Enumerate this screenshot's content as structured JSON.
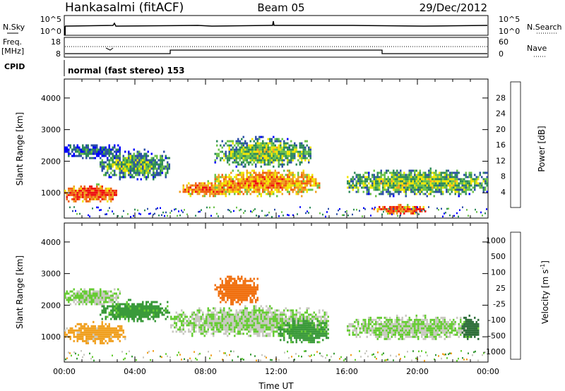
{
  "header": {
    "station": "Hankasalmi (fitACF)",
    "beam": "Beam 05",
    "date": "29/Dec/2012"
  },
  "noise_panel": {
    "left_label": "N.Sky",
    "right_label": "N.Search",
    "left_ticks": [
      "10^5",
      "10^0"
    ],
    "right_ticks": [
      "10^5",
      "10^0"
    ]
  },
  "freq_panel": {
    "left_label_line1": "Freq.",
    "left_label_line2": "[MHz]",
    "left_ticks": [
      "18",
      "8"
    ],
    "right_ticks": [
      "60",
      "0"
    ],
    "right_label": "Nave",
    "cpid_label": "CPID",
    "cpid_text": "normal (fast stereo) 153"
  },
  "chart_data": [
    {
      "type": "heatmap",
      "name": "power",
      "ylabel": "Slant Range [km]",
      "xlabel": "Time UT",
      "x_ticks": [
        "00:00",
        "04:00",
        "08:00",
        "12:00",
        "16:00",
        "20:00",
        "00:00"
      ],
      "y_ticks": [
        1000,
        2000,
        3000,
        4000
      ],
      "ylim": [
        200,
        4600
      ],
      "xlim_hours": [
        0,
        24
      ],
      "colorbar": {
        "label": "Power [dB]",
        "ticks": [
          4,
          8,
          12,
          16,
          20,
          24,
          28
        ],
        "range": [
          0,
          30
        ],
        "colors": [
          "#0000ff",
          "#2d4fa8",
          "#2e8a5a",
          "#6cc24a",
          "#f2e600",
          "#f0a020",
          "#f06010",
          "#ee1010"
        ]
      },
      "echo_regions": [
        {
          "t_start": 0.0,
          "t_end": 3.0,
          "r_low": 700,
          "r_high": 1300,
          "level_db": 26
        },
        {
          "t_start": 0.0,
          "t_end": 3.2,
          "r_low": 2100,
          "r_high": 2600,
          "level_db": 8
        },
        {
          "t_start": 2.0,
          "t_end": 6.0,
          "r_low": 1400,
          "r_high": 2400,
          "level_db": 12
        },
        {
          "t_start": 6.5,
          "t_end": 10.0,
          "r_low": 900,
          "r_high": 1400,
          "level_db": 24
        },
        {
          "t_start": 8.5,
          "t_end": 14.5,
          "r_low": 900,
          "r_high": 1800,
          "level_db": 22
        },
        {
          "t_start": 8.5,
          "t_end": 14.0,
          "r_low": 1800,
          "r_high": 2800,
          "level_db": 14
        },
        {
          "t_start": 16.0,
          "t_end": 24.0,
          "r_low": 900,
          "r_high": 1800,
          "level_db": 14
        },
        {
          "t_start": 17.5,
          "t_end": 20.5,
          "r_low": 350,
          "r_high": 650,
          "level_db": 26
        }
      ]
    },
    {
      "type": "heatmap",
      "name": "velocity",
      "ylabel": "Slant Range [km]",
      "xlabel": "Time UT",
      "x_ticks": [
        "00:00",
        "04:00",
        "08:00",
        "12:00",
        "16:00",
        "20:00",
        "00:00"
      ],
      "y_ticks": [
        1000,
        2000,
        3000,
        4000
      ],
      "ylim": [
        200,
        4600
      ],
      "xlim_hours": [
        0,
        24
      ],
      "colorbar": {
        "label": "Velocity [m s^-1]",
        "ticks": [
          "1000",
          "500",
          "100",
          "25",
          "-25",
          "-100",
          "-500",
          "-1000"
        ],
        "colors": [
          "#2244cc",
          "#2e6f3a",
          "#3a9a3a",
          "#66cc33",
          "#c8c8c0",
          "#f0a020",
          "#f07010",
          "#ee1010"
        ]
      },
      "echo_regions": [
        {
          "t_start": 0.0,
          "t_end": 3.2,
          "r_low": 2000,
          "r_high": 2600,
          "velocity": 0
        },
        {
          "t_start": 0.0,
          "t_end": 3.5,
          "r_low": 800,
          "r_high": 1500,
          "velocity": -100
        },
        {
          "t_start": 2.0,
          "t_end": 6.0,
          "r_low": 1500,
          "r_high": 2200,
          "velocity": 100
        },
        {
          "t_start": 8.5,
          "t_end": 11.0,
          "r_low": 2000,
          "r_high": 3000,
          "velocity": -500
        },
        {
          "t_start": 6.0,
          "t_end": 15.0,
          "r_low": 1000,
          "r_high": 2000,
          "velocity": 0
        },
        {
          "t_start": 12.0,
          "t_end": 15.0,
          "r_low": 800,
          "r_high": 1600,
          "velocity": 100
        },
        {
          "t_start": 16.0,
          "t_end": 23.5,
          "r_low": 900,
          "r_high": 1700,
          "velocity": 0
        },
        {
          "t_start": 22.5,
          "t_end": 23.5,
          "r_low": 900,
          "r_high": 1700,
          "velocity": 500
        }
      ]
    }
  ]
}
